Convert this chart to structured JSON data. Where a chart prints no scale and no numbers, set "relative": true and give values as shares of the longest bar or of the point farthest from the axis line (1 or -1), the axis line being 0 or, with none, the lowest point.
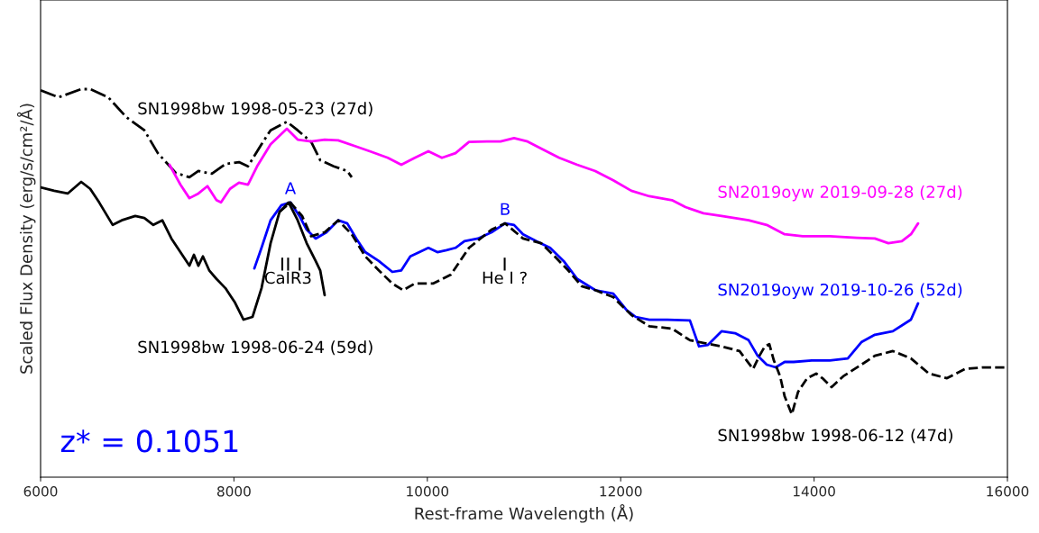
{
  "chart_data": {
    "type": "line",
    "relative": true,
    "xlabel": "Rest-frame Wavelength (Å)",
    "ylabel": "Scaled Flux Density (erg/s/cm²/Å)",
    "xlim": [
      6000,
      16000
    ],
    "xticks": [
      6000,
      8000,
      10000,
      12000,
      14000,
      16000
    ],
    "grid": false,
    "legend": false,
    "marker": "none",
    "series": [
      {
        "name": "SN1998bw 1998-05-23 (27d)",
        "color": "#000000",
        "line_style": "dashdot",
        "x": [
          6000,
          6187,
          6420,
          6513,
          6700,
          6886,
          7073,
          7213,
          7399,
          7539,
          7632,
          7772,
          7912,
          8052,
          8145,
          8285,
          8379,
          8547,
          8659,
          8799,
          8892,
          9032,
          9172,
          9218
        ],
        "values": [
          0.997,
          0.979,
          1.0,
          1.0,
          0.979,
          0.928,
          0.894,
          0.835,
          0.784,
          0.773,
          0.789,
          0.782,
          0.807,
          0.812,
          0.801,
          0.858,
          0.894,
          0.916,
          0.894,
          0.864,
          0.817,
          0.801,
          0.789,
          0.773
        ]
      },
      {
        "name": "SN2019oyw 2019-09-28 (27d)",
        "color": "#ff00ff",
        "line_style": "solid",
        "x": [
          7334,
          7446,
          7539,
          7632,
          7726,
          7819,
          7866,
          7959,
          8052,
          8145,
          8239,
          8379,
          8547,
          8659,
          8799,
          8938,
          9078,
          9265,
          9405,
          9591,
          9731,
          9871,
          10011,
          10151,
          10291,
          10431,
          10617,
          10757,
          10897,
          11037,
          11177,
          11364,
          11550,
          11737,
          11923,
          12110,
          12296,
          12530,
          12670,
          12856,
          13043,
          13323,
          13510,
          13696,
          13882,
          14162,
          14442,
          14629,
          14768,
          14908,
          15002,
          15076
        ],
        "values": [
          0.805,
          0.754,
          0.719,
          0.731,
          0.75,
          0.714,
          0.708,
          0.743,
          0.759,
          0.754,
          0.801,
          0.858,
          0.898,
          0.87,
          0.865,
          0.87,
          0.868,
          0.852,
          0.84,
          0.823,
          0.805,
          0.823,
          0.84,
          0.823,
          0.835,
          0.864,
          0.865,
          0.865,
          0.874,
          0.865,
          0.847,
          0.823,
          0.805,
          0.789,
          0.765,
          0.738,
          0.724,
          0.714,
          0.696,
          0.68,
          0.673,
          0.662,
          0.65,
          0.626,
          0.621,
          0.621,
          0.617,
          0.615,
          0.603,
          0.608,
          0.626,
          0.654
        ]
      },
      {
        "name": "SN2019oyw 2019-10-26 (52d)",
        "color": "#0000ff",
        "line_style": "solid",
        "x": [
          8211,
          8285,
          8379,
          8491,
          8584,
          8677,
          8752,
          8845,
          8957,
          9078,
          9172,
          9265,
          9358,
          9498,
          9638,
          9731,
          9824,
          9918,
          10011,
          10104,
          10198,
          10291,
          10384,
          10524,
          10664,
          10804,
          10897,
          10990,
          11130,
          11270,
          11410,
          11550,
          11737,
          11923,
          12063,
          12156,
          12296,
          12483,
          12716,
          12810,
          12903,
          13043,
          13183,
          13323,
          13416,
          13510,
          13603,
          13696,
          13789,
          13976,
          14162,
          14349,
          14489,
          14629,
          14815,
          15002,
          15076
        ],
        "values": [
          0.538,
          0.591,
          0.662,
          0.701,
          0.708,
          0.673,
          0.638,
          0.615,
          0.631,
          0.662,
          0.654,
          0.615,
          0.58,
          0.557,
          0.529,
          0.533,
          0.569,
          0.58,
          0.591,
          0.58,
          0.585,
          0.591,
          0.608,
          0.615,
          0.631,
          0.654,
          0.65,
          0.626,
          0.608,
          0.591,
          0.557,
          0.511,
          0.482,
          0.473,
          0.43,
          0.413,
          0.406,
          0.406,
          0.404,
          0.337,
          0.341,
          0.376,
          0.371,
          0.353,
          0.313,
          0.29,
          0.283,
          0.297,
          0.297,
          0.301,
          0.301,
          0.306,
          0.348,
          0.367,
          0.376,
          0.406,
          0.448
        ]
      },
      {
        "name": "SN1998bw 1998-06-24 (59d)",
        "color": "#000000",
        "line_style": "solid",
        "x": [
          6000,
          6140,
          6280,
          6420,
          6513,
          6606,
          6746,
          6840,
          6979,
          7073,
          7166,
          7259,
          7353,
          7446,
          7539,
          7586,
          7632,
          7679,
          7744,
          7819,
          7912,
          8006,
          8099,
          8192,
          8285,
          8379,
          8472,
          8565,
          8659,
          8752,
          8845,
          8892,
          8938
        ],
        "values": [
          0.747,
          0.738,
          0.731,
          0.761,
          0.743,
          0.708,
          0.65,
          0.662,
          0.673,
          0.668,
          0.65,
          0.662,
          0.615,
          0.58,
          0.545,
          0.573,
          0.545,
          0.569,
          0.533,
          0.511,
          0.487,
          0.452,
          0.406,
          0.413,
          0.487,
          0.603,
          0.684,
          0.708,
          0.662,
          0.603,
          0.557,
          0.533,
          0.469
        ]
      },
      {
        "name": "SN1998bw 1998-06-12 (47d)",
        "color": "#000000",
        "line_style": "dashed",
        "x": [
          8472,
          8584,
          8705,
          8798,
          8938,
          9078,
          9218,
          9358,
          9498,
          9638,
          9750,
          9871,
          10058,
          10244,
          10431,
          10664,
          10804,
          10990,
          11177,
          11317,
          11457,
          11597,
          11737,
          11923,
          12110,
          12296,
          12530,
          12716,
          13043,
          13229,
          13369,
          13435,
          13491,
          13537,
          13584,
          13649,
          13696,
          13770,
          13835,
          13929,
          14022,
          14087,
          14181,
          14302,
          14489,
          14629,
          14815,
          15002,
          15188,
          15375,
          15561,
          15748,
          16000
        ],
        "values": [
          0.684,
          0.708,
          0.673,
          0.621,
          0.631,
          0.662,
          0.626,
          0.569,
          0.533,
          0.499,
          0.482,
          0.499,
          0.499,
          0.522,
          0.591,
          0.638,
          0.654,
          0.615,
          0.603,
          0.569,
          0.533,
          0.492,
          0.482,
          0.464,
          0.418,
          0.389,
          0.383,
          0.353,
          0.337,
          0.325,
          0.279,
          0.313,
          0.337,
          0.343,
          0.301,
          0.26,
          0.208,
          0.162,
          0.22,
          0.255,
          0.267,
          0.255,
          0.232,
          0.26,
          0.29,
          0.313,
          0.325,
          0.306,
          0.267,
          0.255,
          0.279,
          0.283,
          0.283
        ]
      }
    ],
    "annotations": [
      {
        "text": "A",
        "x": 8584,
        "y": 0.708
      },
      {
        "text": "B",
        "x": 10804,
        "y": 0.654
      },
      "CaIR3",
      "He I ?",
      "z* = 0.1051"
    ]
  }
}
